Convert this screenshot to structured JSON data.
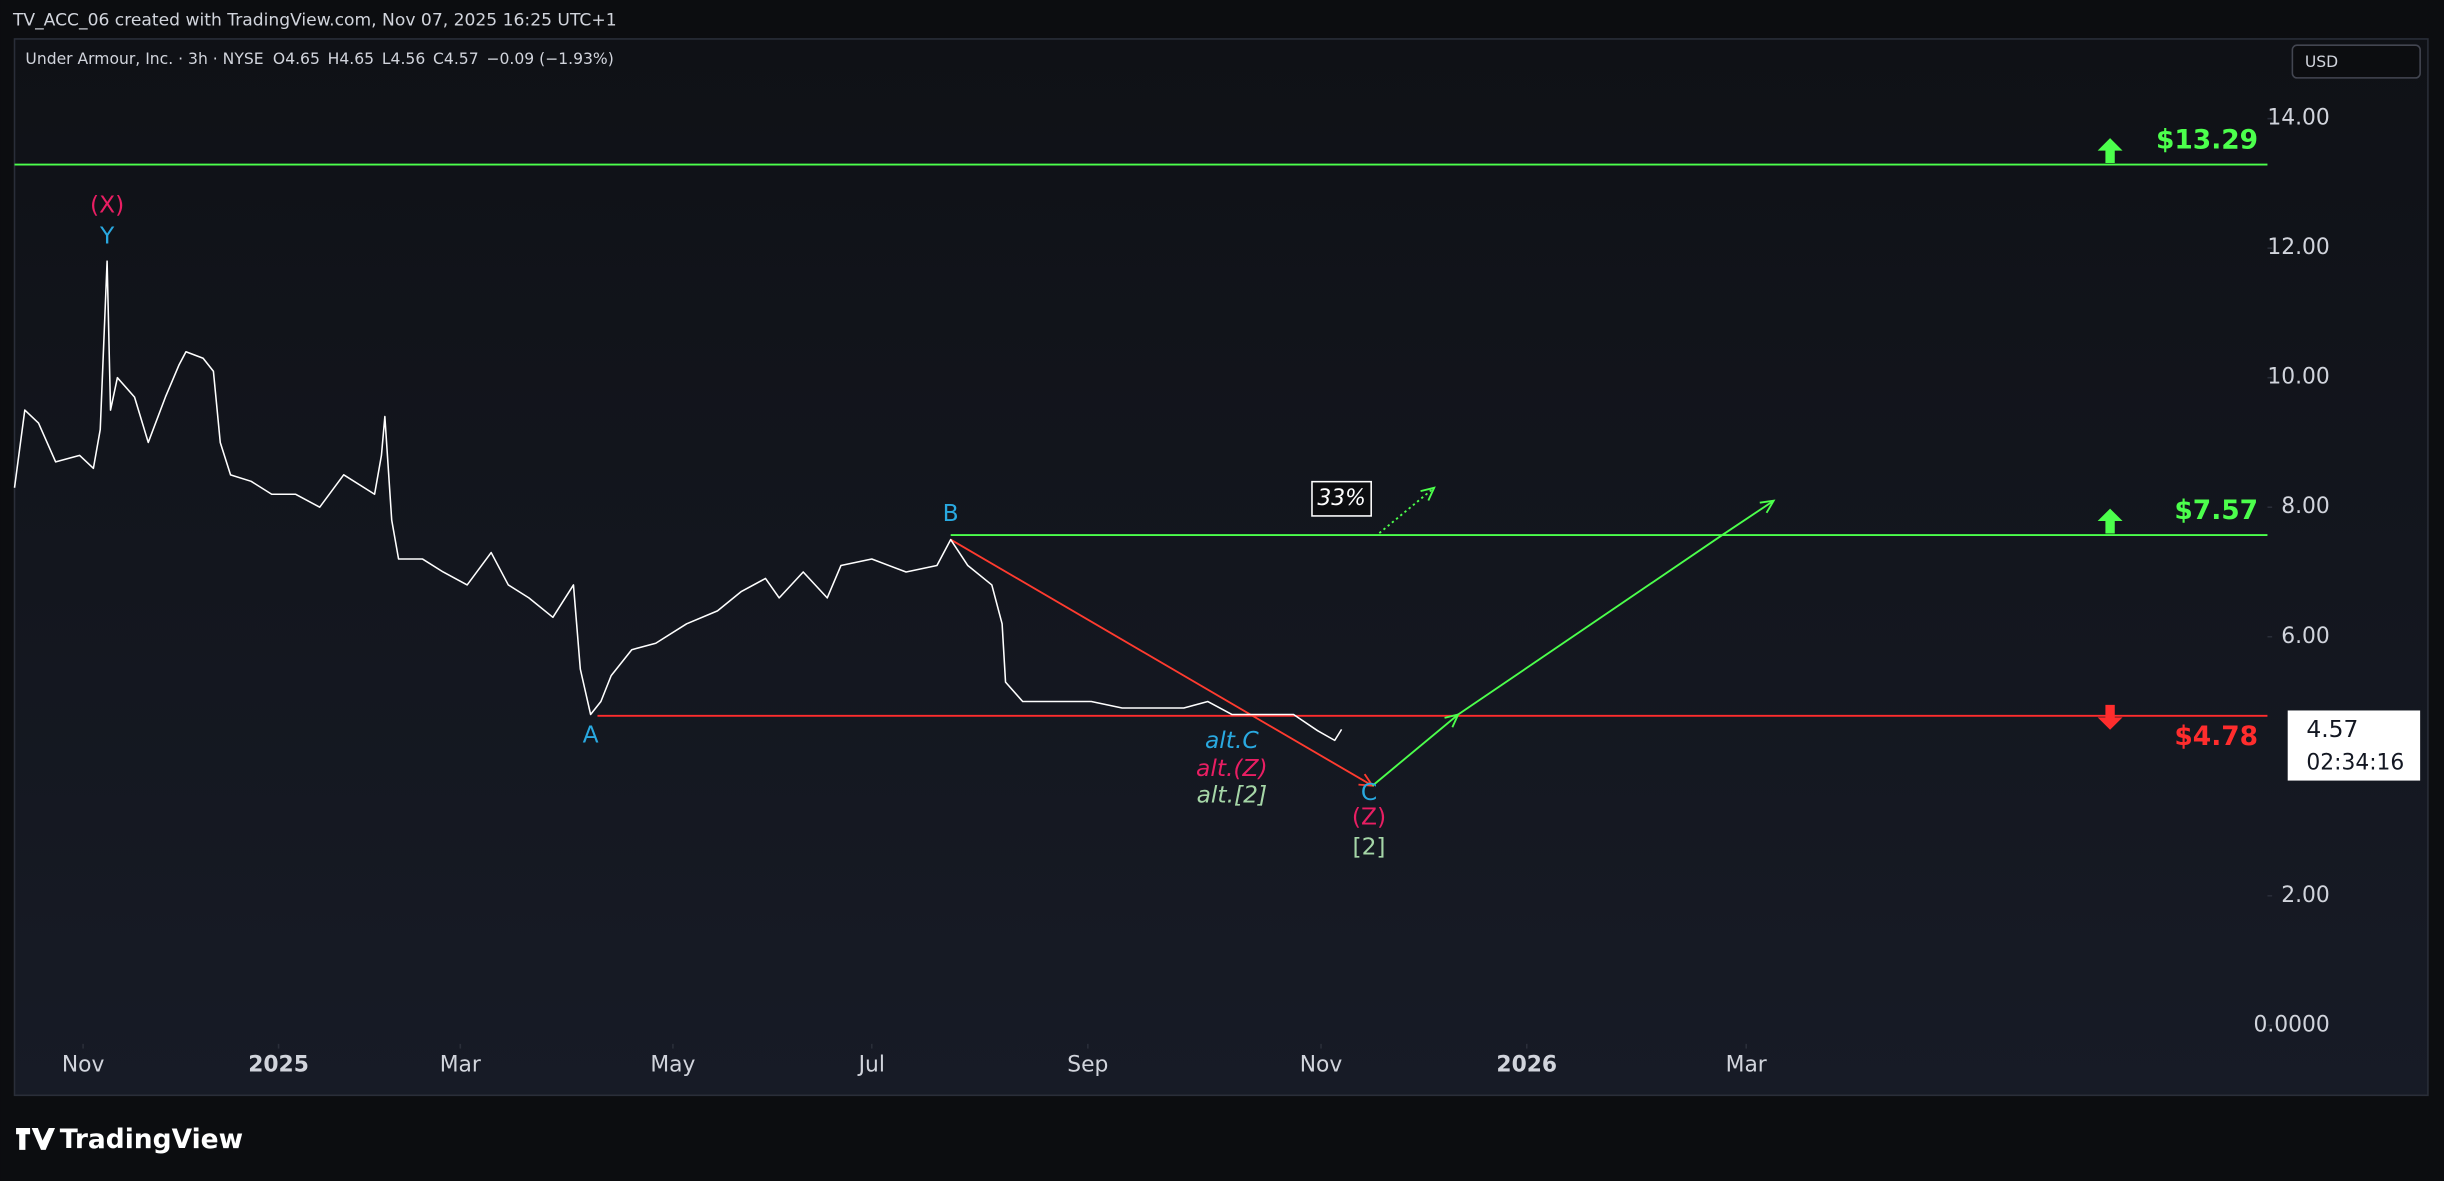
{
  "header": {
    "title": "TV_ACC_06 created with TradingView.com, Nov 07, 2025 16:25 UTC+1"
  },
  "legend": {
    "symbol": "Under Armour, Inc. · 3h · NYSE",
    "ohlc": [
      {
        "label": "O",
        "value": "4.65"
      },
      {
        "label": "H",
        "value": "4.65"
      },
      {
        "label": "L",
        "value": "4.56"
      },
      {
        "label": "C",
        "value": "4.57"
      }
    ],
    "change": "−0.09 (−1.93%)"
  },
  "currency": "USD",
  "last_price": {
    "price": "4.57",
    "countdown": "02:34:16"
  },
  "footer": {
    "brand": "TradingView"
  },
  "chart_data": {
    "type": "line",
    "x": [
      -20,
      -17,
      -13,
      -8,
      -1,
      3,
      5,
      7,
      8,
      10,
      15,
      19,
      24,
      28,
      30,
      35,
      38,
      40,
      43,
      49,
      55,
      62,
      69,
      76,
      85,
      87,
      88,
      90,
      92,
      99,
      105,
      112,
      119,
      124,
      130,
      137,
      143,
      145,
      148,
      151,
      154,
      160,
      167,
      176,
      185,
      192,
      199,
      203,
      210,
      217,
      221,
      230,
      240,
      249,
      253,
      258,
      265,
      268,
      269,
      274,
      285,
      294,
      303,
      312,
      321,
      328,
      335,
      344,
      353,
      360,
      365,
      367
    ],
    "series": [
      {
        "name": "Under Armour, Inc.",
        "color": "#ffffff",
        "values": [
          8.3,
          9.5,
          9.3,
          8.7,
          8.8,
          8.6,
          9.2,
          11.8,
          9.5,
          10.0,
          9.7,
          9.0,
          9.7,
          10.2,
          10.4,
          10.3,
          10.1,
          9.0,
          8.5,
          8.4,
          8.2,
          8.2,
          8.0,
          8.5,
          8.2,
          8.8,
          9.4,
          7.8,
          7.2,
          7.2,
          7.0,
          6.8,
          7.3,
          6.8,
          6.6,
          6.3,
          6.8,
          5.5,
          4.8,
          5.0,
          5.4,
          5.8,
          5.9,
          6.2,
          6.4,
          6.7,
          6.9,
          6.6,
          7.0,
          6.6,
          7.1,
          7.2,
          7.0,
          7.1,
          7.5,
          7.1,
          6.8,
          6.2,
          5.3,
          5.0,
          5.0,
          5.0,
          4.9,
          4.9,
          4.9,
          5.0,
          4.8,
          4.8,
          4.8,
          4.55,
          4.4,
          4.57
        ]
      }
    ],
    "xlim": [
      -20,
      637
    ],
    "xticks": [
      {
        "value": 0,
        "label": "Nov"
      },
      {
        "value": 57,
        "label": "2025",
        "bold": true
      },
      {
        "value": 110,
        "label": "Mar"
      },
      {
        "value": 172,
        "label": "May"
      },
      {
        "value": 230,
        "label": "Jul"
      },
      {
        "value": 293,
        "label": "Sep"
      },
      {
        "value": 361,
        "label": "Nov"
      },
      {
        "value": 421,
        "label": "2026",
        "bold": true
      },
      {
        "value": 485,
        "label": "Mar"
      }
    ],
    "ylim": [
      -1.08,
      15.23
    ],
    "yticks": [
      {
        "value": 0,
        "label": "0.0000"
      },
      {
        "value": 2,
        "label": "2.00"
      },
      {
        "value": 6,
        "label": "6.00"
      },
      {
        "value": 8,
        "label": "8.00"
      },
      {
        "value": 10,
        "label": "10.00"
      },
      {
        "value": 12,
        "label": "12.00"
      },
      {
        "value": 14,
        "label": "14.00"
      }
    ],
    "grid": false,
    "levels": [
      {
        "value": 13.29,
        "label": "$13.29",
        "color": "#4cff4c",
        "direction": "up",
        "from": -20
      },
      {
        "value": 7.57,
        "label": "$7.57",
        "color": "#4cff4c",
        "direction": "up",
        "from": 253
      },
      {
        "value": 4.78,
        "label": "$4.78",
        "color": "#ff2d2d",
        "direction": "down",
        "from": 150
      }
    ],
    "wave_labels": [
      {
        "text": "(X)",
        "x": 7,
        "y": 12.65,
        "color": "#e91e63"
      },
      {
        "text": "Y",
        "x": 7,
        "y": 12.17,
        "color": "#29a9e0"
      },
      {
        "text": "A",
        "x": 148,
        "y": 4.47,
        "color": "#29a9e0"
      },
      {
        "text": "B",
        "x": 253,
        "y": 7.89,
        "color": "#29a9e0"
      },
      {
        "text": "C",
        "x": 375,
        "y": 3.58,
        "color": "#29a9e0"
      },
      {
        "text": "(Z)",
        "x": 375,
        "y": 3.2,
        "color": "#e91e63"
      },
      {
        "text": "[2]",
        "x": 375,
        "y": 2.74,
        "color": "#a5d6a7"
      },
      {
        "text": "alt.C",
        "x": 335,
        "y": 4.38,
        "color": "#29a9e0",
        "italic": true
      },
      {
        "text": "alt.(Z)",
        "x": 335,
        "y": 3.95,
        "color": "#e91e63",
        "italic": true
      },
      {
        "text": "alt.[2]",
        "x": 335,
        "y": 3.54,
        "color": "#a5d6a7",
        "italic": true
      }
    ],
    "probability": {
      "text": "33%",
      "x": 367,
      "y": 8.13
    },
    "projections": [
      {
        "color": "#ff3b2f",
        "x": [
          253,
          376
        ],
        "y": [
          7.5,
          3.7
        ]
      },
      {
        "color": "#4cff4c",
        "x": [
          376,
          401,
          478,
          493
        ],
        "y": [
          3.7,
          4.8,
          7.57,
          8.1
        ]
      },
      {
        "color": "#4cff4c",
        "dotted": true,
        "x": [
          378,
          394
        ],
        "y": [
          7.6,
          8.3
        ]
      }
    ]
  }
}
